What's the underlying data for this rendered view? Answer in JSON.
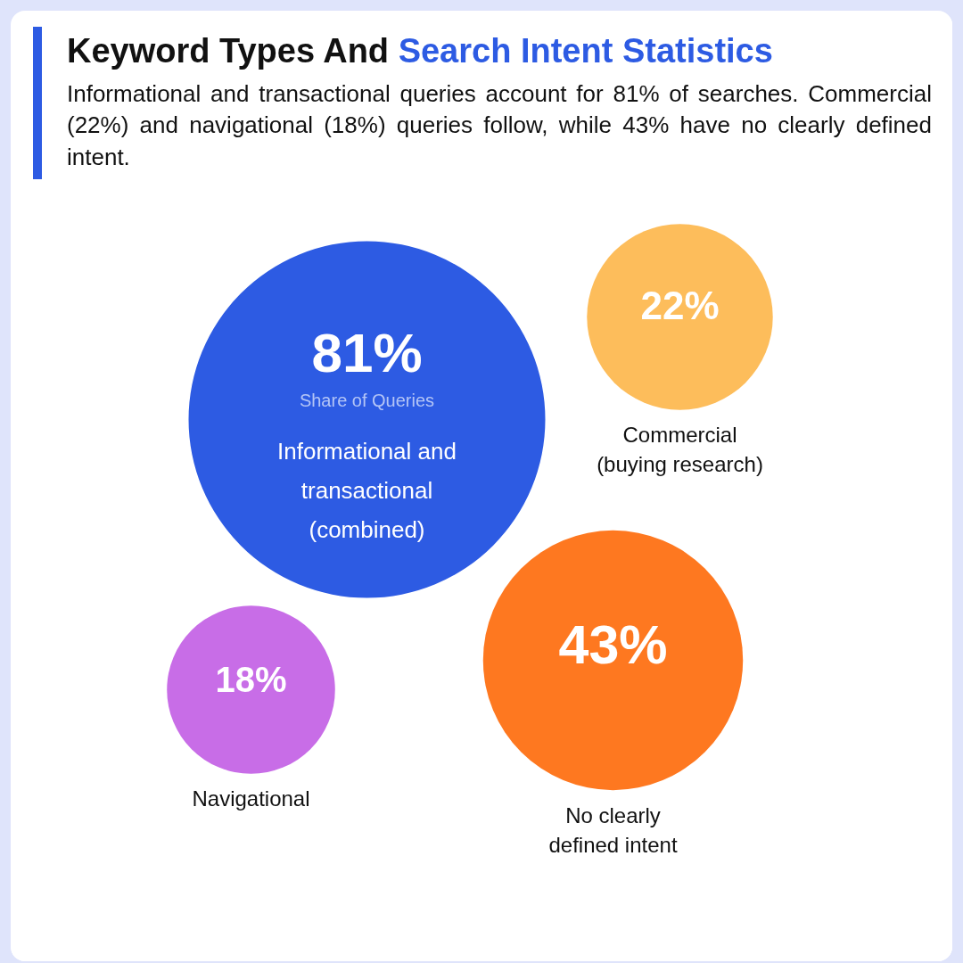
{
  "chart_data": {
    "type": "other",
    "title": "Keyword Types And Search Intent Statistics",
    "subtitle": "Informational and transactional queries account for 81% of searches. Commercial (22%) and navigational (18%) queries follow, while 43% have no clearly defined intent.",
    "categories": [
      "Informational and transactional (combined)",
      "Commercial (buying research)",
      "Navigational",
      "No clearly defined intent"
    ],
    "values": [
      81,
      22,
      18,
      43
    ],
    "value_labels": [
      "81%",
      "22%",
      "18%",
      "43%"
    ],
    "colors": [
      "#2d5be3",
      "#fdbd5b",
      "#c86de7",
      "#fe7820"
    ],
    "annotations": [
      {
        "text": "Share of Queries",
        "x": "Informational and transactional (combined)"
      }
    ]
  }
}
